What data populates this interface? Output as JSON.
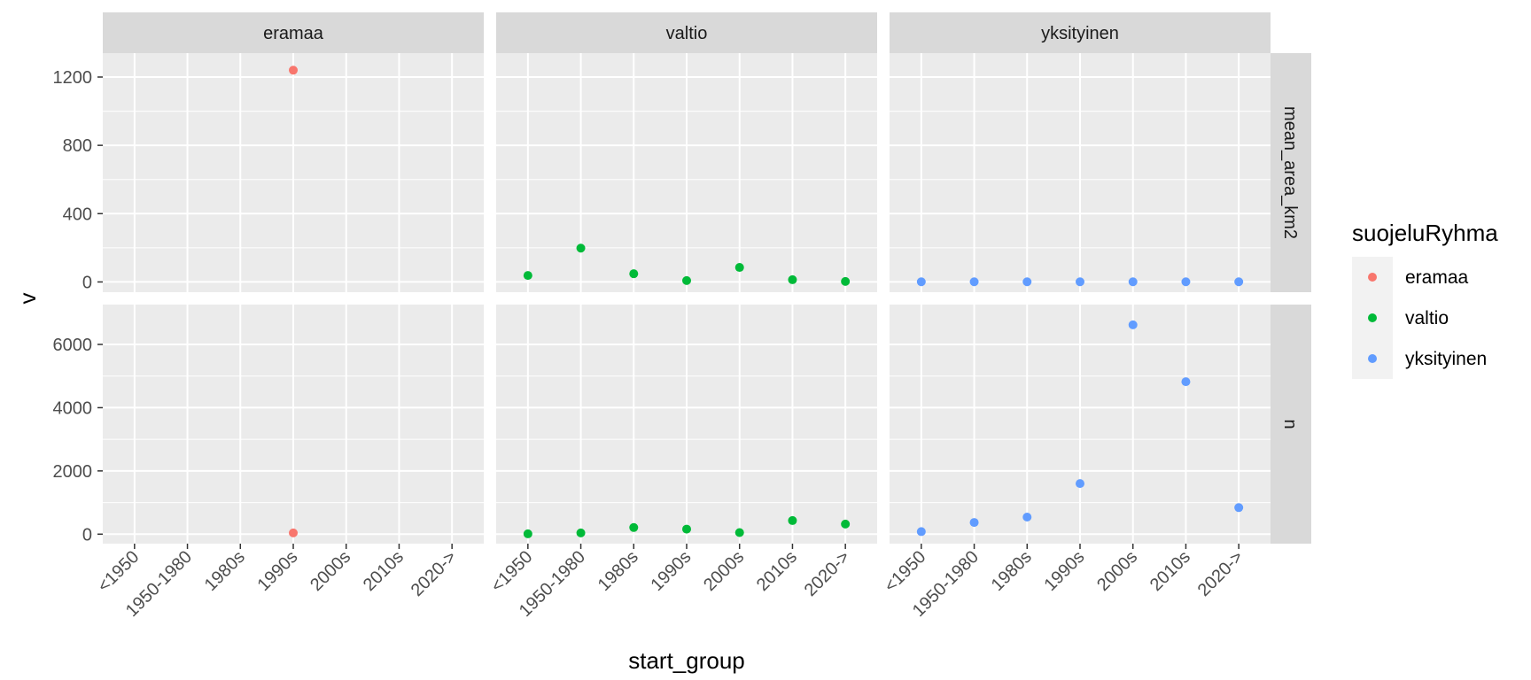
{
  "chart_data": {
    "type": "scatter",
    "xlabel": "start_group",
    "ylabel": "v",
    "categories": [
      "<1950",
      "1950-1980",
      "1980s",
      "1990s",
      "2000s",
      "2010s",
      "2020->"
    ],
    "col_facets": [
      "eramaa",
      "valtio",
      "yksityinen"
    ],
    "row_facets": [
      {
        "name": "mean_area_km2",
        "ylim": [
          -60,
          1340
        ],
        "ticks": [
          0,
          400,
          800,
          1200
        ],
        "tick_labels": [
          "0",
          "400",
          "800",
          "1200"
        ]
      },
      {
        "name": "n",
        "ylim": [
          -300,
          7260
        ],
        "ticks": [
          0,
          2000,
          4000,
          6000
        ],
        "tick_labels": [
          "0",
          "2000",
          "4000",
          "6000"
        ]
      }
    ],
    "legend": {
      "title": "suojeluRyhma",
      "placement": "right",
      "entries": [
        {
          "name": "eramaa",
          "color": "#F8766D"
        },
        {
          "name": "valtio",
          "color": "#00BA38"
        },
        {
          "name": "yksityinen",
          "color": "#619CFF"
        }
      ]
    },
    "series": [
      {
        "name": "eramaa",
        "panels": {
          "mean_area_km2": [
            null,
            null,
            null,
            1240,
            null,
            null,
            null
          ],
          "n": [
            null,
            null,
            null,
            40,
            null,
            null,
            null
          ]
        }
      },
      {
        "name": "valtio",
        "panels": {
          "mean_area_km2": [
            38,
            198,
            48,
            8,
            85,
            13,
            3
          ],
          "n": [
            10,
            40,
            210,
            160,
            50,
            430,
            320
          ]
        }
      },
      {
        "name": "yksityinen",
        "panels": {
          "mean_area_km2": [
            1,
            1,
            1,
            1,
            1,
            1,
            1
          ],
          "n": [
            80,
            370,
            540,
            1600,
            6620,
            4820,
            840
          ]
        }
      }
    ]
  }
}
